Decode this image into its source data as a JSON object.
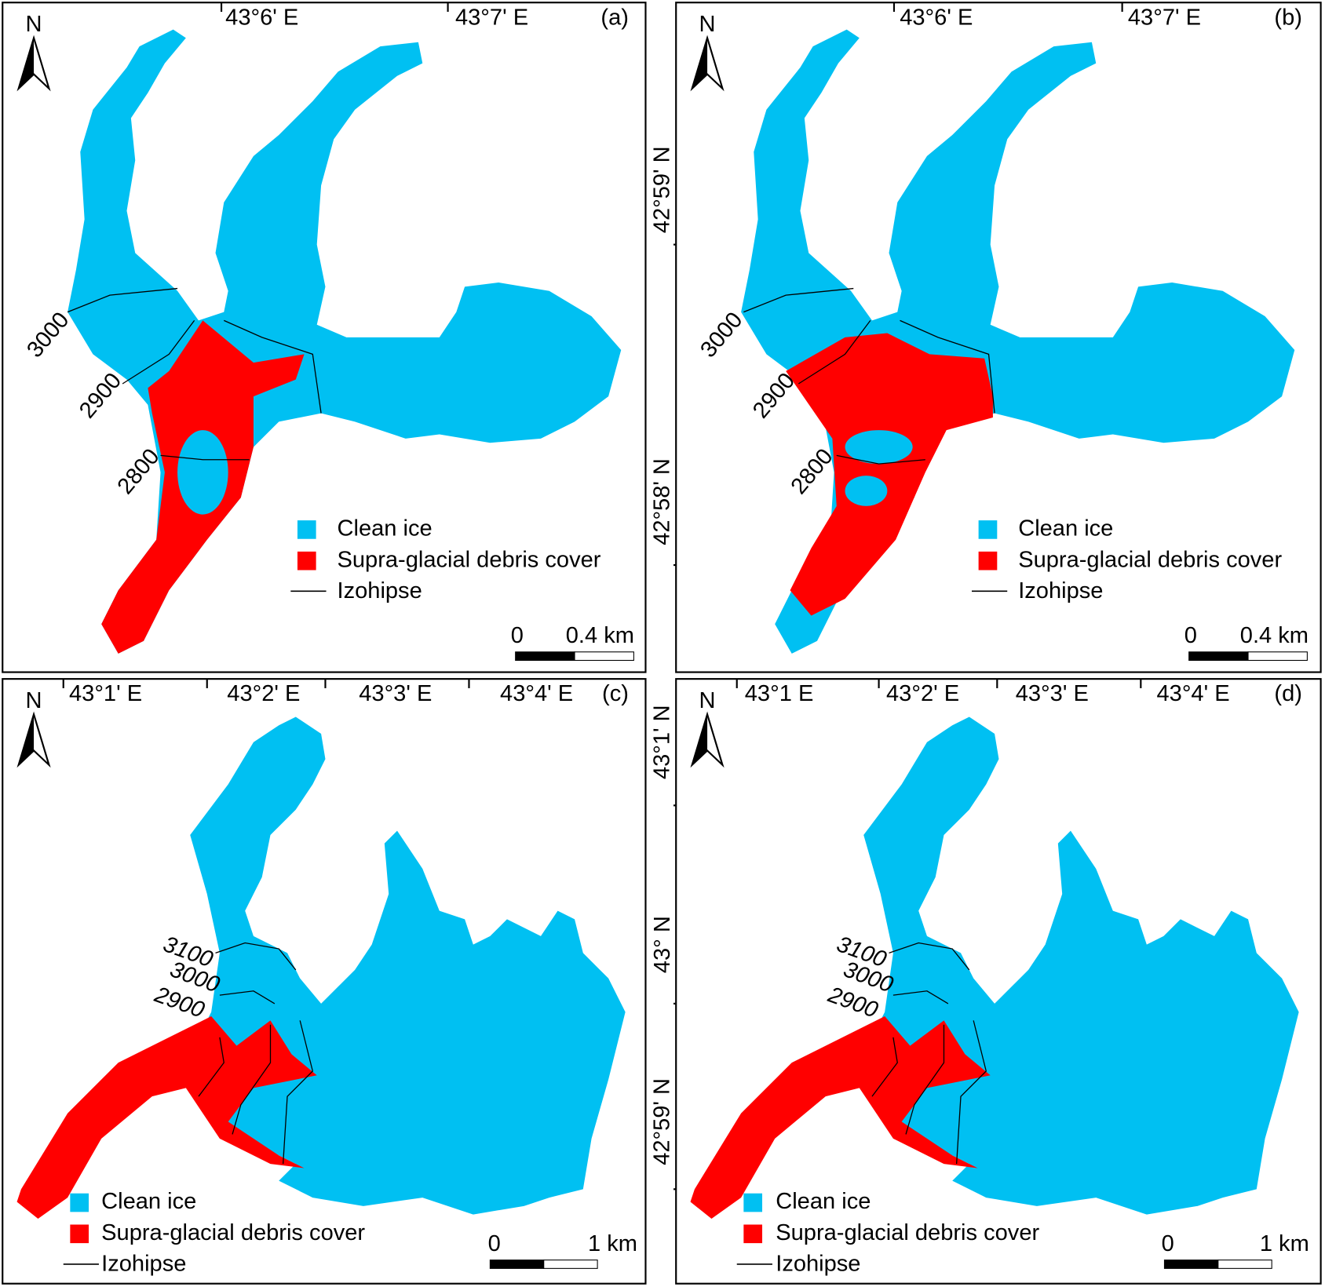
{
  "panels": [
    {
      "label": "(a)",
      "x_ticks": [
        "43°6' E",
        "43°7' E"
      ],
      "north": "N",
      "contours": [
        "3000",
        "2900",
        "2800"
      ],
      "legend": [
        "Clean ice",
        "Supra-glacial debris cover",
        "Izohipse"
      ],
      "scale": [
        "0",
        "0.4 km"
      ]
    },
    {
      "label": "(b)",
      "x_ticks": [
        "43°6' E",
        "43°7' E"
      ],
      "north": "N",
      "contours": [
        "3000",
        "2900",
        "2800"
      ],
      "legend": [
        "Clean ice",
        "Supra-glacial debris cover",
        "Izohipse"
      ],
      "scale": [
        "0",
        "0.4 km"
      ]
    },
    {
      "label": "(c)",
      "x_ticks": [
        "43°1' E",
        "43°2' E",
        "43°3' E",
        "43°4' E"
      ],
      "north": "N",
      "contours": [
        "3100",
        "3000",
        "2900"
      ],
      "legend": [
        "Clean ice",
        "Supra-glacial debris cover",
        "Izohipse"
      ],
      "scale": [
        "0",
        "1 km"
      ]
    },
    {
      "label": "(d)",
      "x_ticks": [
        "43°1 E",
        "43°2' E",
        "43°3' E",
        "43°4' E"
      ],
      "north": "N",
      "contours": [
        "3100",
        "3000",
        "2900"
      ],
      "legend": [
        "Clean ice",
        "Supra-glacial debris cover",
        "Izohipse"
      ],
      "scale": [
        "0",
        "1 km"
      ]
    }
  ],
  "y_ticks_top": [
    "42°59' N",
    "42°58' N"
  ],
  "y_ticks_bottom": [
    "43°1' N",
    "43° N",
    "42°59' N"
  ]
}
